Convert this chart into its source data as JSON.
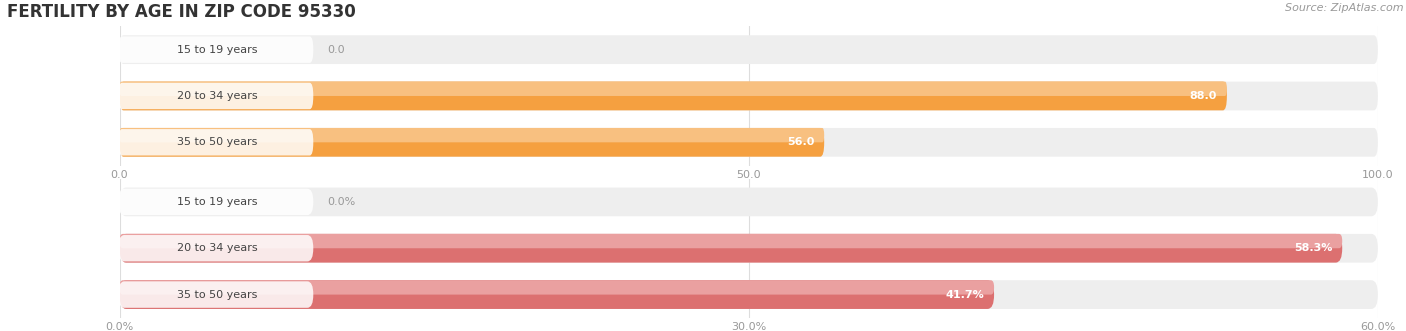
{
  "title": "FERTILITY BY AGE IN ZIP CODE 95330",
  "source": "Source: ZipAtlas.com",
  "chart1": {
    "categories": [
      "15 to 19 years",
      "20 to 34 years",
      "35 to 50 years"
    ],
    "values": [
      0.0,
      88.0,
      56.0
    ],
    "xlim": [
      0,
      100
    ],
    "xticks": [
      0.0,
      50.0,
      100.0
    ],
    "xtick_labels": [
      "0.0",
      "50.0",
      "100.0"
    ],
    "bar_color": "#F5A040",
    "bar_color_light": "#F8C080",
    "bar_bg_color": "#EEEEEE",
    "value_color_inside": "#FFFFFF",
    "value_color_outside": "#666666"
  },
  "chart2": {
    "categories": [
      "15 to 19 years",
      "20 to 34 years",
      "35 to 50 years"
    ],
    "values": [
      0.0,
      58.3,
      41.7
    ],
    "xlim": [
      0,
      60
    ],
    "xticks": [
      0.0,
      30.0,
      60.0
    ],
    "xtick_labels": [
      "0.0%",
      "30.0%",
      "60.0%"
    ],
    "bar_color": "#DC7070",
    "bar_color_light": "#EAA0A0",
    "bar_bg_color": "#EEEEEE",
    "value_color_inside": "#FFFFFF",
    "value_color_outside": "#666666"
  },
  "title_fontsize": 12,
  "source_fontsize": 8,
  "value_fontsize": 8,
  "tick_fontsize": 8,
  "category_fontsize": 8,
  "title_color": "#333333",
  "tick_color": "#999999",
  "category_color": "#444444",
  "bg_color": "#FFFFFF",
  "label_pill_color": "#FFFFFF",
  "label_pill_alpha": 0.85,
  "grid_color": "#DDDDDD"
}
